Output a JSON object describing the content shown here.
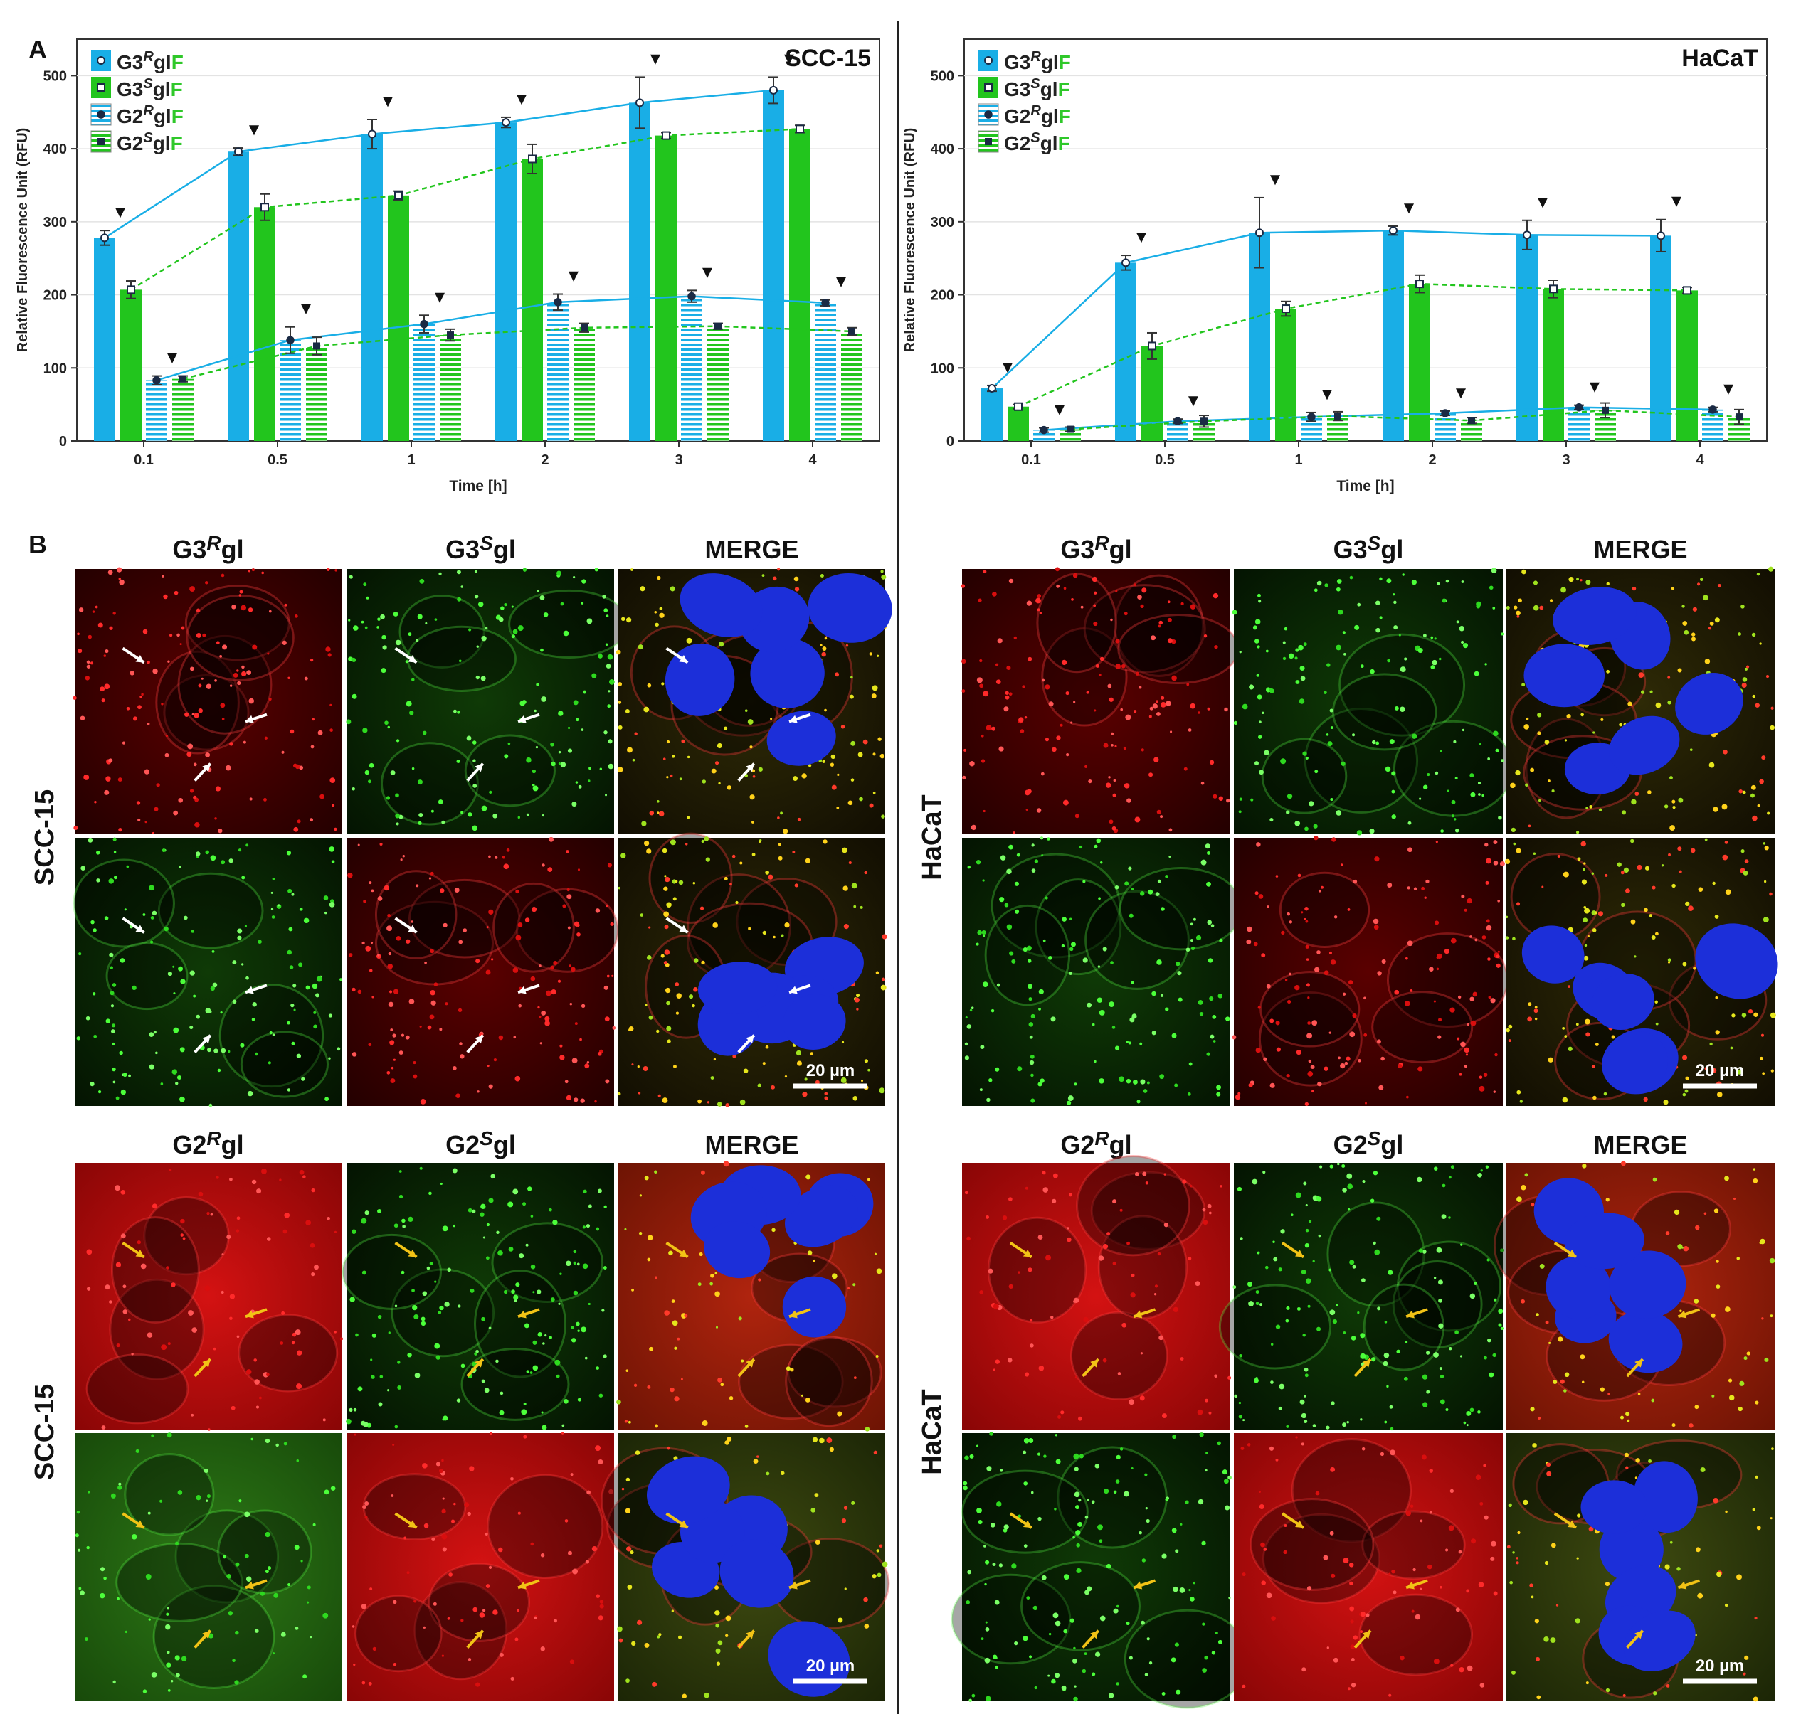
{
  "panel_labels": {
    "a": "A",
    "b": "B"
  },
  "colors": {
    "blue": "#19aee6",
    "green": "#22c51d",
    "hatch_blue": "#9fd8f1",
    "hatch_green": "#9ed996",
    "text_green": "#2fc82a"
  },
  "legend": [
    {
      "prefix": "G3",
      "sup": "R",
      "mid": "gl",
      "suffix": "F",
      "marker": "open-circle",
      "style": "solid-blue"
    },
    {
      "prefix": "G3",
      "sup": "S",
      "mid": "gl",
      "suffix": "F",
      "marker": "open-square",
      "style": "solid-green"
    },
    {
      "prefix": "G2",
      "sup": "R",
      "mid": "gl",
      "suffix": "F",
      "marker": "filled-circle",
      "style": "hatched-blue"
    },
    {
      "prefix": "G2",
      "sup": "S",
      "mid": "gl",
      "suffix": "F",
      "marker": "filled-square",
      "style": "hatched-green"
    }
  ],
  "chart_data": [
    {
      "type": "bar",
      "title": "SCC-15",
      "xlabel": "Time [h]",
      "ylabel": "Relative Fluorescence Unit (RFU)",
      "ylim": [
        0,
        550
      ],
      "yticks": [
        0,
        100,
        200,
        300,
        400,
        500
      ],
      "categories": [
        "0.1",
        "0.5",
        "1",
        "2",
        "3",
        "4"
      ],
      "series": [
        {
          "name": "G3RglF",
          "values": [
            278,
            396,
            420,
            436,
            463,
            480
          ],
          "errors": [
            10,
            5,
            20,
            7,
            35,
            18
          ],
          "line": "solid"
        },
        {
          "name": "G3SglF",
          "values": [
            207,
            320,
            336,
            386,
            418,
            427
          ],
          "errors": [
            12,
            18,
            6,
            20,
            4,
            5
          ],
          "line": "dashed"
        },
        {
          "name": "G2RglF",
          "values": [
            83,
            138,
            160,
            190,
            198,
            189
          ],
          "errors": [
            6,
            18,
            12,
            11,
            8,
            4
          ],
          "line": "solid"
        },
        {
          "name": "G2SglF",
          "values": [
            85,
            130,
            145,
            155,
            157,
            150
          ],
          "errors": [
            4,
            12,
            8,
            6,
            4,
            5
          ],
          "line": "dashed"
        }
      ],
      "markers": "▼"
    },
    {
      "type": "bar",
      "title": "HaCaT",
      "xlabel": "Time [h]",
      "ylabel": "Relative Fluorescence Unit (RFU)",
      "ylim": [
        0,
        550
      ],
      "yticks": [
        0,
        100,
        200,
        300,
        400,
        500
      ],
      "categories": [
        "0.1",
        "0.5",
        "1",
        "2",
        "3",
        "4"
      ],
      "series": [
        {
          "name": "G3RglF",
          "values": [
            72,
            244,
            285,
            288,
            282,
            281
          ],
          "errors": [
            4,
            10,
            48,
            6,
            20,
            22
          ],
          "line": "solid"
        },
        {
          "name": "G3SglF",
          "values": [
            47,
            130,
            181,
            215,
            208,
            206
          ],
          "errors": [
            3,
            18,
            10,
            12,
            12,
            4
          ],
          "line": "dashed"
        },
        {
          "name": "G2RglF",
          "values": [
            15,
            27,
            33,
            38,
            46,
            43
          ],
          "errors": [
            3,
            3,
            6,
            3,
            3,
            3
          ],
          "line": "solid"
        },
        {
          "name": "G2SglF",
          "values": [
            16,
            27,
            34,
            28,
            42,
            33
          ],
          "errors": [
            3,
            8,
            6,
            4,
            10,
            10
          ],
          "line": "dashed"
        }
      ],
      "markers": "▼"
    }
  ],
  "micrographs": {
    "blocks": [
      {
        "side": "SCC-15",
        "row_label": "SCC-15",
        "headers": [
          {
            "pre": "G3",
            "sup": "R",
            "post": "gl"
          },
          {
            "pre": "G3",
            "sup": "S",
            "post": "gl"
          },
          {
            "pre": "MERGE",
            "sup": "",
            "post": ""
          }
        ],
        "scale": "20 µm"
      },
      {
        "side": "HaCaT",
        "row_label": "HaCaT",
        "headers": [
          {
            "pre": "G3",
            "sup": "R",
            "post": "gl"
          },
          {
            "pre": "G3",
            "sup": "S",
            "post": "gl"
          },
          {
            "pre": "MERGE",
            "sup": "",
            "post": ""
          }
        ],
        "scale": "20 µm"
      },
      {
        "side": "SCC-15",
        "row_label": "SCC-15",
        "headers": [
          {
            "pre": "G2",
            "sup": "R",
            "post": "gl"
          },
          {
            "pre": "G2",
            "sup": "S",
            "post": "gl"
          },
          {
            "pre": "MERGE",
            "sup": "",
            "post": ""
          }
        ],
        "scale": "20 µm"
      },
      {
        "side": "HaCaT",
        "row_label": "HaCaT",
        "headers": [
          {
            "pre": "G2",
            "sup": "R",
            "post": "gl"
          },
          {
            "pre": "G2",
            "sup": "S",
            "post": "gl"
          },
          {
            "pre": "MERGE",
            "sup": "",
            "post": ""
          }
        ],
        "scale": "20 µm"
      }
    ]
  }
}
